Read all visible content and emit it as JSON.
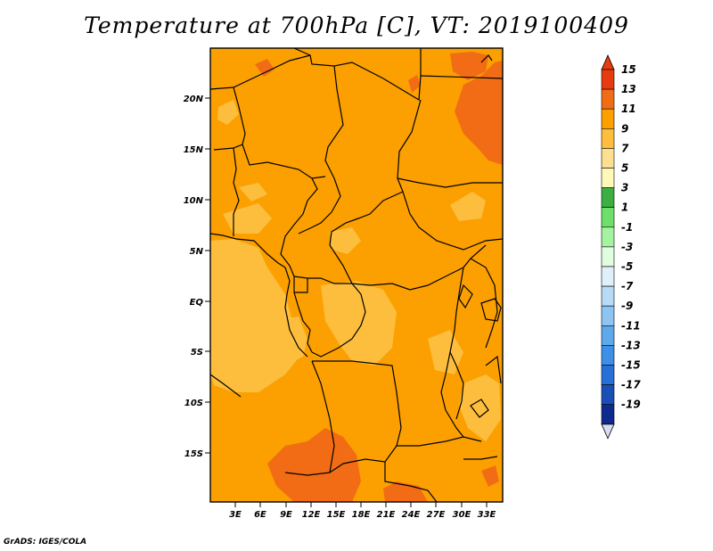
{
  "title": "Temperature at 700hPa [C], VT: 2019100409",
  "credit": "GrADS: IGES/COLA",
  "map": {
    "lat_labels": [
      "20N",
      "15N",
      "10N",
      "5N",
      "EQ",
      "5S",
      "10S",
      "15S"
    ],
    "lon_labels": [
      "3E",
      "6E",
      "9E",
      "12E",
      "15E",
      "18E",
      "21E",
      "24E",
      "27E",
      "30E",
      "33E"
    ],
    "colors": {
      "warm_light": "#fdbe3e",
      "warm_mid": "#fba000",
      "warm_dark": "#f26c15",
      "border": "#000000"
    }
  },
  "colorbar": {
    "labels": [
      "15",
      "13",
      "11",
      "9",
      "7",
      "5",
      "3",
      "1",
      "-1",
      "-3",
      "-5",
      "-7",
      "-9",
      "-11",
      "-13",
      "-15",
      "-17",
      "-19"
    ],
    "colors": [
      "#e53b0e",
      "#f26c15",
      "#fba000",
      "#fdbe3e",
      "#fde08f",
      "#fff8b8",
      "#3bb041",
      "#6de06b",
      "#a3f3a0",
      "#e1fde0",
      "#dff0fb",
      "#b7dbf6",
      "#8dc4f2",
      "#5da9ec",
      "#3e8fe8",
      "#2970d6",
      "#1a4fb8",
      "#0f2a8e"
    ],
    "top_color": "#e53b0e",
    "bottom_color": "#0d1363"
  }
}
